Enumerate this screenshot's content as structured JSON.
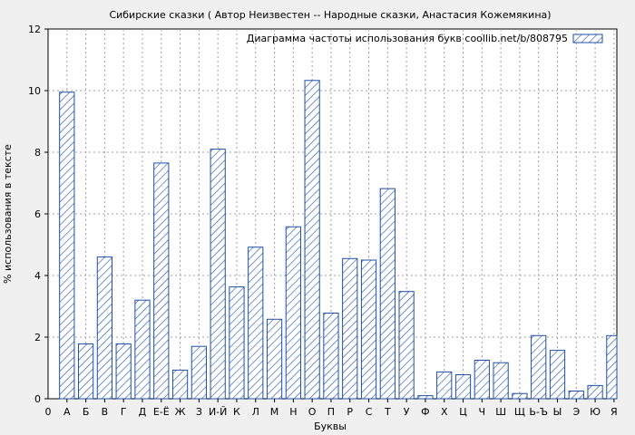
{
  "chart_data": {
    "type": "bar",
    "title": "Сибирские сказки ( Автор Неизвестен -- Народные сказки, Анастасия Кожемякина)",
    "xlabel": "Буквы",
    "ylabel": "% использования в тексте",
    "ylim": [
      0,
      12
    ],
    "yticks": [
      "0",
      "2",
      "4",
      "6",
      "8",
      "10",
      "12"
    ],
    "x_origin_label": "0",
    "grid": true,
    "legend": {
      "label": "Диаграмма частоты использования букв coollib.net/b/808795",
      "position": "top-right"
    },
    "colors": {
      "bar_stroke": "#1f4fa8",
      "bar_hatch": "#1f4fa8",
      "grid": "#a0a0a0",
      "background": "#f0f0f0",
      "plot_bg": "#ffffff"
    },
    "categories": [
      "А",
      "Б",
      "В",
      "Г",
      "Д",
      "Е-Ё",
      "Ж",
      "З",
      "И-Й",
      "К",
      "Л",
      "М",
      "Н",
      "О",
      "П",
      "Р",
      "С",
      "Т",
      "У",
      "Ф",
      "Х",
      "Ц",
      "Ч",
      "Ш",
      "Щ",
      "Ь-Ъ",
      "Ы",
      "Э",
      "Ю",
      "Я"
    ],
    "values": [
      9.95,
      1.78,
      4.6,
      1.78,
      3.2,
      7.65,
      0.93,
      1.7,
      8.1,
      3.63,
      4.92,
      2.58,
      5.58,
      10.33,
      2.78,
      4.55,
      4.5,
      6.82,
      3.48,
      0.1,
      0.87,
      0.78,
      1.25,
      1.17,
      0.17,
      2.05,
      1.57,
      0.25,
      0.43,
      2.05
    ]
  }
}
